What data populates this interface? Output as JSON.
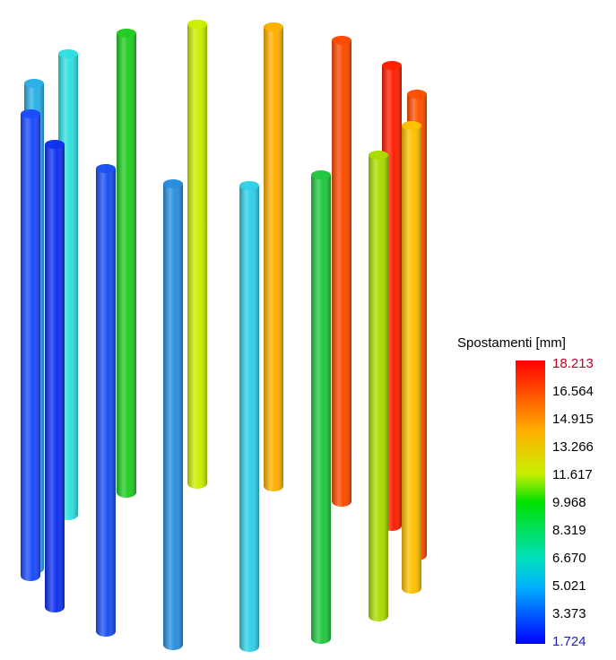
{
  "legend": {
    "title": "Spostamenti [mm]",
    "labels": [
      "18.213",
      "16.564",
      "14.915",
      "13.266",
      "11.617",
      "9.968",
      "8.319",
      "6.670",
      "5.021",
      "3.373",
      "1.724"
    ]
  }
}
